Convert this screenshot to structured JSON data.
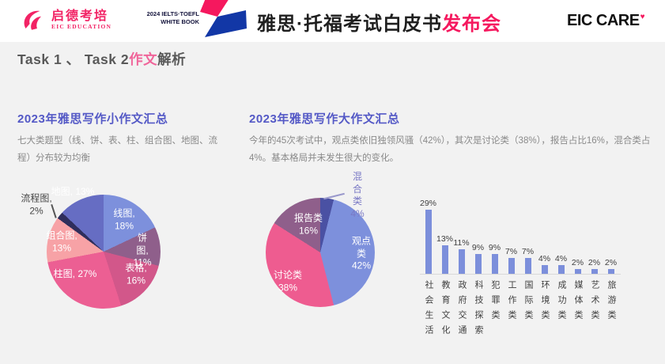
{
  "header": {
    "logo_cn": "启德考培",
    "logo_en": "EIC EDUCATION",
    "badge_line1": "2024 IELTS·TOEFL",
    "badge_line2": "WHITE BOOK",
    "title_black": "雅思·托福考试白皮书",
    "title_pink": "发布会",
    "care_logo": "EIC CARE",
    "care_heart": "♥",
    "brand_pink": "#F22365",
    "brand_blue": "#1237A6"
  },
  "task_title": {
    "prefix": "Task 1 、 Task 2",
    "highlight": "作文",
    "suffix": "解析"
  },
  "left_section": {
    "title": "2023年雅思写作小作文汇总",
    "desc": "七大类题型（线、饼、表、柱、组合图、地图、流程）分布较为均衡"
  },
  "right_section": {
    "title": "2023年雅思写作大作文汇总",
    "desc": "今年的45次考试中，观点类依旧独领风骚（42%），其次是讨论类（38%），报告占比16%，混合类占4%。基本格局并未发生很大的变化。"
  },
  "chart_data": [
    {
      "type": "pie",
      "title": "2023年雅思写作小作文汇总",
      "categories": [
        "线图",
        "饼图",
        "表格",
        "柱图",
        "组合图",
        "流程图",
        "地图"
      ],
      "values": [
        18,
        11,
        16,
        27,
        13,
        2,
        13
      ],
      "colors": [
        "#7D90DC",
        "#8F5F8B",
        "#D2578A",
        "#EC5F93",
        "#F7A2A6",
        "#2F2E5C",
        "#666DC3"
      ],
      "labels": [
        "线图, 18%",
        "饼图, 11%",
        "表格, 16%",
        "柱图, 27%",
        "组合图,\n13%",
        "流程图,\n2%",
        "地图, 13%"
      ],
      "legend_position": "inside",
      "start_angle": 0
    },
    {
      "type": "pie",
      "title": "2023年雅思写作大作文汇总",
      "categories": [
        "混合类",
        "观点类",
        "讨论类",
        "报告类"
      ],
      "values": [
        4,
        42,
        38,
        16
      ],
      "colors": [
        "#4A51A3",
        "#7D90DC",
        "#EE5C90",
        "#8F5F8B"
      ],
      "labels": [
        "混合类\n4%",
        "观点类\n42%",
        "讨论类\n38%",
        "报告类\n16%"
      ],
      "legend_position": "inside",
      "start_angle": 0
    },
    {
      "type": "bar",
      "categories": [
        "社会生活",
        "教育文化",
        "政府交通",
        "科技探索",
        "犯罪类",
        "工作类",
        "国际类",
        "环境类",
        "成功类",
        "媒体类",
        "艺术类",
        "旅游类"
      ],
      "values": [
        29,
        13,
        11,
        9,
        9,
        7,
        7,
        4,
        4,
        2,
        2,
        2
      ],
      "value_suffix": "%",
      "bar_color": "#7C8FDB",
      "ylim": [
        0,
        32
      ],
      "grid": false,
      "baseline_color": "#d8d8d8"
    }
  ]
}
